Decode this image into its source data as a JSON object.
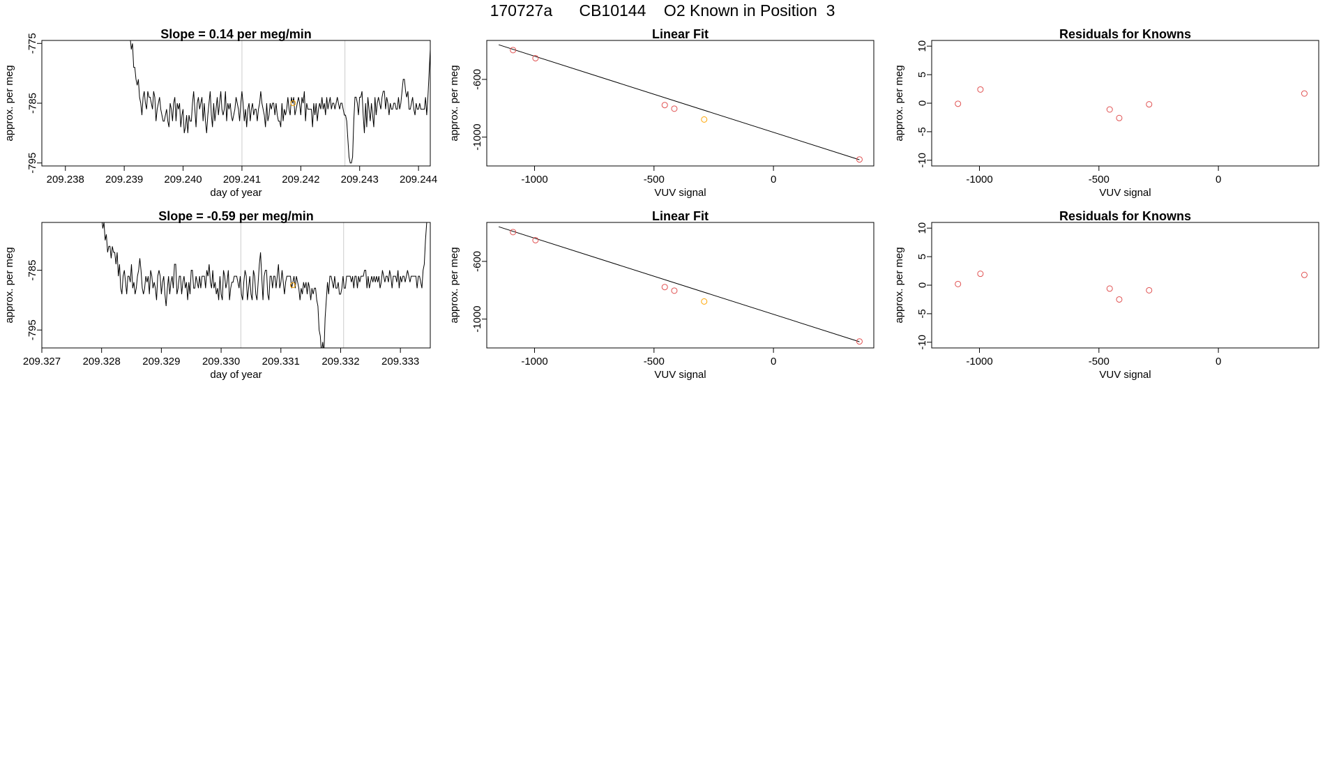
{
  "title": "170727a      CB10144    O2 Known in Position  3",
  "colors": {
    "trace": "#000000",
    "grid": "#cccccc",
    "highlight": "#ffa500",
    "residual": "#e05050",
    "axis": "#000000"
  },
  "chart_data": [
    {
      "id": "ts1",
      "type": "line",
      "title": "Slope =  0.14  per meg/min",
      "xlabel": "day of year",
      "ylabel": "approx. per meg",
      "xlim": [
        209.2376,
        209.2442
      ],
      "ylim": [
        -795.5,
        -774.5
      ],
      "xticks": [
        209.238,
        209.239,
        209.24,
        209.241,
        209.242,
        209.243,
        209.244
      ],
      "xtick_labels": [
        "209.238",
        "209.239",
        "209.240",
        "209.241",
        "209.242",
        "209.243",
        "209.244"
      ],
      "yticks": [
        -775,
        -785,
        -795
      ],
      "ytick_labels": [
        "-775",
        "-785",
        "-795"
      ],
      "vlines": [
        209.241,
        209.24275
      ],
      "highlight_point": {
        "x": 209.24187,
        "y": -785
      },
      "series": [
        {
          "x0": 209.2391,
          "dx": 2e-05,
          "values": [
            -774,
            -776,
            -775,
            -779,
            -779,
            -781,
            -782,
            -781,
            -784,
            -785,
            -787,
            -784,
            -783,
            -785,
            -786,
            -783,
            -784,
            -784,
            -785,
            -786,
            -783,
            -784,
            -788,
            -786,
            -785,
            -784,
            -786,
            -787,
            -788,
            -788,
            -787,
            -786,
            -788,
            -789,
            -785,
            -786,
            -788,
            -785,
            -784,
            -788,
            -785,
            -786,
            -785,
            -789,
            -787,
            -786,
            -790,
            -789,
            -787,
            -790,
            -787,
            -788,
            -788,
            -785,
            -783,
            -786,
            -789,
            -785,
            -784,
            -786,
            -785,
            -784,
            -788,
            -785,
            -788,
            -790,
            -787,
            -785,
            -783,
            -787,
            -789,
            -785,
            -788,
            -786,
            -784,
            -787,
            -785,
            -783,
            -786,
            -787,
            -786,
            -783,
            -788,
            -785,
            -786,
            -785,
            -787,
            -788,
            -787,
            -786,
            -784,
            -785,
            -786,
            -788,
            -785,
            -783,
            -785,
            -788,
            -786,
            -789,
            -786,
            -785,
            -788,
            -786,
            -785,
            -787,
            -786,
            -786,
            -788,
            -786,
            -785,
            -783,
            -785,
            -786,
            -787,
            -789,
            -785,
            -788,
            -787,
            -785,
            -786,
            -785,
            -785,
            -787,
            -785,
            -787,
            -788,
            -788,
            -789,
            -785,
            -788,
            -786,
            -787,
            -786,
            -784,
            -786,
            -787,
            -784,
            -785,
            -784,
            -787,
            -786,
            -785,
            -784,
            -785,
            -787,
            -784,
            -785,
            -783,
            -788,
            -785,
            -786,
            -786,
            -786,
            -786,
            -789,
            -785,
            -787,
            -785,
            -788,
            -786,
            -785,
            -786,
            -784,
            -786,
            -785,
            -787,
            -784,
            -786,
            -785,
            -784,
            -786,
            -785,
            -785,
            -786,
            -785,
            -784,
            -785,
            -786,
            -785,
            -785,
            -786,
            -787,
            -787,
            -788,
            -791,
            -794,
            -795,
            -795,
            -794,
            -788,
            -784,
            -784,
            -785,
            -787,
            -784,
            -784,
            -783,
            -787,
            -790,
            -785,
            -789,
            -784,
            -786,
            -788,
            -785,
            -787,
            -789,
            -784,
            -787,
            -785,
            -784,
            -785,
            -786,
            -784,
            -783,
            -783,
            -786,
            -784,
            -785,
            -787,
            -785,
            -786,
            -786,
            -785,
            -785,
            -786,
            -786,
            -784,
            -786,
            -785,
            -783,
            -781,
            -781,
            -783,
            -784,
            -783,
            -786,
            -786,
            -785,
            -784,
            -786,
            -787,
            -785,
            -786,
            -786,
            -785,
            -786,
            -786,
            -786,
            -786,
            -784,
            -787,
            -784,
            -780,
            -776,
            -774
          ]
        }
      ]
    },
    {
      "id": "lf1",
      "type": "scatter",
      "title": "Linear Fit",
      "xlabel": "VUV signal",
      "ylabel": "approx. per meg",
      "xlim": [
        -1200,
        420
      ],
      "ylim": [
        -1200,
        -330
      ],
      "xticks": [
        -1000,
        -500,
        0
      ],
      "xtick_labels": [
        "-1000",
        "-500",
        "0"
      ],
      "yticks": [
        -600,
        -1000
      ],
      "ytick_labels": [
        "-600",
        "-1000"
      ],
      "fit_line": {
        "x": [
          -1150,
          360
        ],
        "y": [
          -360,
          -1157
        ]
      },
      "points": [
        {
          "x": -1090,
          "y": -397,
          "color": "residual"
        },
        {
          "x": -996,
          "y": -453,
          "color": "residual"
        },
        {
          "x": -455,
          "y": -778,
          "color": "residual"
        },
        {
          "x": -415,
          "y": -803,
          "color": "residual"
        },
        {
          "x": -290,
          "y": -878,
          "color": "highlight"
        },
        {
          "x": 360,
          "y": -1155,
          "color": "residual"
        }
      ]
    },
    {
      "id": "rk1",
      "type": "scatter",
      "title": "Residuals for Knowns",
      "xlabel": "VUV signal",
      "ylabel": "approx. per meg",
      "xlim": [
        -1200,
        420
      ],
      "ylim": [
        -11,
        11
      ],
      "xticks": [
        -1000,
        -500,
        0
      ],
      "xtick_labels": [
        "-1000",
        "-500",
        "0"
      ],
      "yticks": [
        10,
        5,
        0,
        -5,
        -10
      ],
      "ytick_labels": [
        "10",
        "5",
        "0",
        "-5",
        "-10"
      ],
      "points": [
        {
          "x": -1090,
          "y": -0.1,
          "color": "residual"
        },
        {
          "x": -996,
          "y": 2.4,
          "color": "residual"
        },
        {
          "x": -455,
          "y": -1.1,
          "color": "residual"
        },
        {
          "x": -415,
          "y": -2.6,
          "color": "residual"
        },
        {
          "x": -290,
          "y": -0.2,
          "color": "residual"
        },
        {
          "x": 360,
          "y": 1.7,
          "color": "residual"
        }
      ]
    },
    {
      "id": "ts2",
      "type": "line",
      "title": "Slope =  -0.59  per meg/min",
      "xlabel": "day of year",
      "ylabel": "approx. per meg",
      "xlim": [
        209.327,
        209.3335
      ],
      "ylim": [
        -798,
        -777
      ],
      "xticks": [
        209.327,
        209.328,
        209.329,
        209.33,
        209.331,
        209.332,
        209.333
      ],
      "xtick_labels": [
        "209.327",
        "209.328",
        "209.329",
        "209.330",
        "209.331",
        "209.332",
        "209.333"
      ],
      "yticks": [
        -785,
        -795
      ],
      "ytick_labels": [
        "-785",
        "-795"
      ],
      "vlines": [
        209.33033,
        209.33205
      ],
      "highlight_point": {
        "x": 209.3312,
        "y": -787.5
      },
      "series": [
        {
          "x0": 209.328,
          "dx": 2e-05,
          "values": [
            -776,
            -778,
            -777,
            -780,
            -779,
            -782,
            -781,
            -781,
            -783,
            -781,
            -782,
            -782,
            -784,
            -782,
            -786,
            -784,
            -788,
            -789,
            -786,
            -785,
            -787,
            -789,
            -786,
            -786,
            -787,
            -784,
            -788,
            -787,
            -789,
            -788,
            -786,
            -785,
            -783,
            -785,
            -788,
            -789,
            -788,
            -786,
            -787,
            -786,
            -789,
            -785,
            -786,
            -788,
            -787,
            -788,
            -790,
            -786,
            -785,
            -786,
            -789,
            -787,
            -786,
            -789,
            -791,
            -788,
            -786,
            -789,
            -787,
            -786,
            -788,
            -784,
            -784,
            -789,
            -788,
            -786,
            -786,
            -789,
            -787,
            -786,
            -788,
            -787,
            -790,
            -787,
            -789,
            -785,
            -785,
            -788,
            -788,
            -786,
            -787,
            -788,
            -786,
            -788,
            -786,
            -786,
            -786,
            -788,
            -785,
            -786,
            -784,
            -787,
            -788,
            -785,
            -788,
            -787,
            -789,
            -788,
            -790,
            -786,
            -789,
            -790,
            -785,
            -786,
            -788,
            -787,
            -785,
            -790,
            -788,
            -787,
            -787,
            -786,
            -786,
            -786,
            -787,
            -788,
            -786,
            -789,
            -790,
            -787,
            -785,
            -786,
            -790,
            -788,
            -786,
            -789,
            -790,
            -785,
            -786,
            -789,
            -790,
            -787,
            -784,
            -782,
            -786,
            -790,
            -786,
            -785,
            -785,
            -789,
            -790,
            -786,
            -786,
            -788,
            -786,
            -786,
            -788,
            -786,
            -784,
            -788,
            -787,
            -785,
            -787,
            -789,
            -787,
            -786,
            -786,
            -786,
            -786,
            -788,
            -787,
            -786,
            -788,
            -786,
            -787,
            -788,
            -790,
            -788,
            -789,
            -787,
            -788,
            -787,
            -789,
            -787,
            -788,
            -790,
            -788,
            -789,
            -788,
            -788,
            -790,
            -791,
            -795,
            -796,
            -799,
            -797,
            -799,
            -793,
            -790,
            -787,
            -789,
            -786,
            -786,
            -787,
            -788,
            -786,
            -788,
            -788,
            -787,
            -789,
            -789,
            -788,
            -786,
            -788,
            -788,
            -786,
            -786,
            -786,
            -786,
            -787,
            -786,
            -788,
            -786,
            -786,
            -788,
            -786,
            -787,
            -786,
            -786,
            -786,
            -785,
            -785,
            -788,
            -786,
            -788,
            -787,
            -786,
            -787,
            -786,
            -787,
            -786,
            -787,
            -786,
            -788,
            -787,
            -785,
            -786,
            -787,
            -786,
            -786,
            -787,
            -785,
            -786,
            -788,
            -786,
            -786,
            -786,
            -787,
            -785,
            -788,
            -786,
            -787,
            -786,
            -786,
            -787,
            -786,
            -785,
            -786,
            -787,
            -786,
            -786,
            -786,
            -786,
            -786,
            -788,
            -786,
            -786,
            -787,
            -788,
            -785,
            -784,
            -780,
            -777,
            -775
          ]
        }
      ]
    },
    {
      "id": "lf2",
      "type": "scatter",
      "title": "Linear Fit",
      "xlabel": "VUV signal",
      "ylabel": "approx. per meg",
      "xlim": [
        -1200,
        420
      ],
      "ylim": [
        -1200,
        -330
      ],
      "xticks": [
        -1000,
        -500,
        0
      ],
      "xtick_labels": [
        "-1000",
        "-500",
        "0"
      ],
      "yticks": [
        -600,
        -1000
      ],
      "ytick_labels": [
        "-600",
        "-1000"
      ],
      "fit_line": {
        "x": [
          -1150,
          360
        ],
        "y": [
          -360,
          -1157
        ]
      },
      "points": [
        {
          "x": -1090,
          "y": -397,
          "color": "residual"
        },
        {
          "x": -996,
          "y": -453,
          "color": "residual"
        },
        {
          "x": -455,
          "y": -778,
          "color": "residual"
        },
        {
          "x": -415,
          "y": -803,
          "color": "residual"
        },
        {
          "x": -290,
          "y": -878,
          "color": "highlight"
        },
        {
          "x": 360,
          "y": -1155,
          "color": "residual"
        }
      ]
    },
    {
      "id": "rk2",
      "type": "scatter",
      "title": "Residuals for Knowns",
      "xlabel": "VUV signal",
      "ylabel": "approx. per meg",
      "xlim": [
        -1200,
        420
      ],
      "ylim": [
        -11,
        11
      ],
      "xticks": [
        -1000,
        -500,
        0
      ],
      "xtick_labels": [
        "-1000",
        "-500",
        "0"
      ],
      "yticks": [
        10,
        5,
        0,
        -5,
        -10
      ],
      "ytick_labels": [
        "10",
        "5",
        "0",
        "-5",
        "-10"
      ],
      "points": [
        {
          "x": -1090,
          "y": 0.2,
          "color": "residual"
        },
        {
          "x": -996,
          "y": 2.0,
          "color": "residual"
        },
        {
          "x": -455,
          "y": -0.6,
          "color": "residual"
        },
        {
          "x": -415,
          "y": -2.5,
          "color": "residual"
        },
        {
          "x": -290,
          "y": -0.9,
          "color": "residual"
        },
        {
          "x": 360,
          "y": 1.8,
          "color": "residual"
        }
      ]
    }
  ]
}
